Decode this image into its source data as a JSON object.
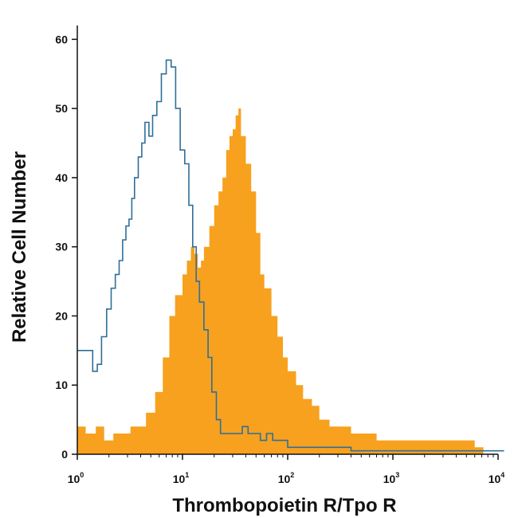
{
  "chart_data": {
    "type": "area",
    "xlabel": "Thrombopoietin R/Tpo R",
    "ylabel": "Relative Cell Number",
    "x_scale": "log",
    "xlim": [
      1,
      10000
    ],
    "ylim": [
      0,
      62
    ],
    "x_ticks": [
      {
        "base": "10",
        "exp": "0"
      },
      {
        "base": "10",
        "exp": "1"
      },
      {
        "base": "10",
        "exp": "2"
      },
      {
        "base": "10",
        "exp": "3"
      },
      {
        "base": "10",
        "exp": "4"
      }
    ],
    "y_ticks": [
      "0",
      "10",
      "20",
      "30",
      "40",
      "50",
      "60"
    ],
    "legend": "none",
    "grid": false,
    "series": [
      {
        "style": "filled",
        "color": "#f7a11f",
        "x": [
          1.0,
          1.2,
          1.5,
          1.8,
          2.2,
          2.7,
          3.2,
          3.8,
          4.5,
          5.5,
          6.5,
          7.5,
          8.5,
          10,
          11,
          12,
          13,
          14,
          15,
          16,
          18,
          20,
          22,
          24,
          26,
          28,
          30,
          32,
          34,
          36,
          40,
          45,
          50,
          55,
          60,
          70,
          80,
          90,
          100,
          120,
          140,
          170,
          200,
          250,
          300,
          400,
          500,
          700,
          1000,
          1500,
          2000,
          3000,
          4000,
          5000,
          6000,
          7000
        ],
        "y": [
          4,
          3,
          4,
          2,
          3,
          3,
          4,
          4,
          6,
          9,
          14,
          20,
          23,
          26,
          28,
          30,
          29,
          27,
          28,
          30,
          33,
          36,
          38,
          40,
          44,
          46,
          47,
          49,
          50,
          46,
          42,
          38,
          32,
          26,
          24,
          20,
          17,
          14,
          12,
          10,
          8,
          7,
          5,
          4,
          4,
          3,
          3,
          2,
          2,
          2,
          2,
          2,
          2,
          2,
          1,
          1
        ]
      },
      {
        "style": "outline",
        "color": "#2f6f99",
        "x": [
          1.0,
          1.3,
          1.4,
          1.55,
          1.7,
          1.9,
          2.1,
          2.3,
          2.5,
          2.7,
          2.9,
          3.1,
          3.3,
          3.5,
          3.8,
          4.1,
          4.4,
          4.8,
          5.2,
          5.7,
          6.3,
          7.0,
          7.8,
          8.6,
          9.5,
          10.5,
          11.5,
          12.5,
          13.5,
          14.5,
          16,
          17.5,
          19,
          21,
          23,
          25,
          28,
          32,
          37,
          42,
          48,
          55,
          63,
          72,
          85,
          100,
          130,
          200,
          400,
          1000,
          3000,
          8000,
          11000
        ],
        "y": [
          15,
          15,
          12,
          13,
          17,
          21,
          24,
          26,
          28,
          31,
          33,
          34,
          37,
          40,
          43,
          45,
          48,
          46,
          49,
          51,
          55,
          57,
          56,
          50,
          44,
          42,
          36,
          30,
          25,
          22,
          18,
          14,
          9,
          5,
          3,
          3,
          3,
          3,
          4,
          3,
          3,
          2,
          3,
          2,
          2,
          1,
          1,
          1,
          0.5,
          0.5,
          0.5,
          0.5,
          0.5
        ]
      }
    ]
  }
}
